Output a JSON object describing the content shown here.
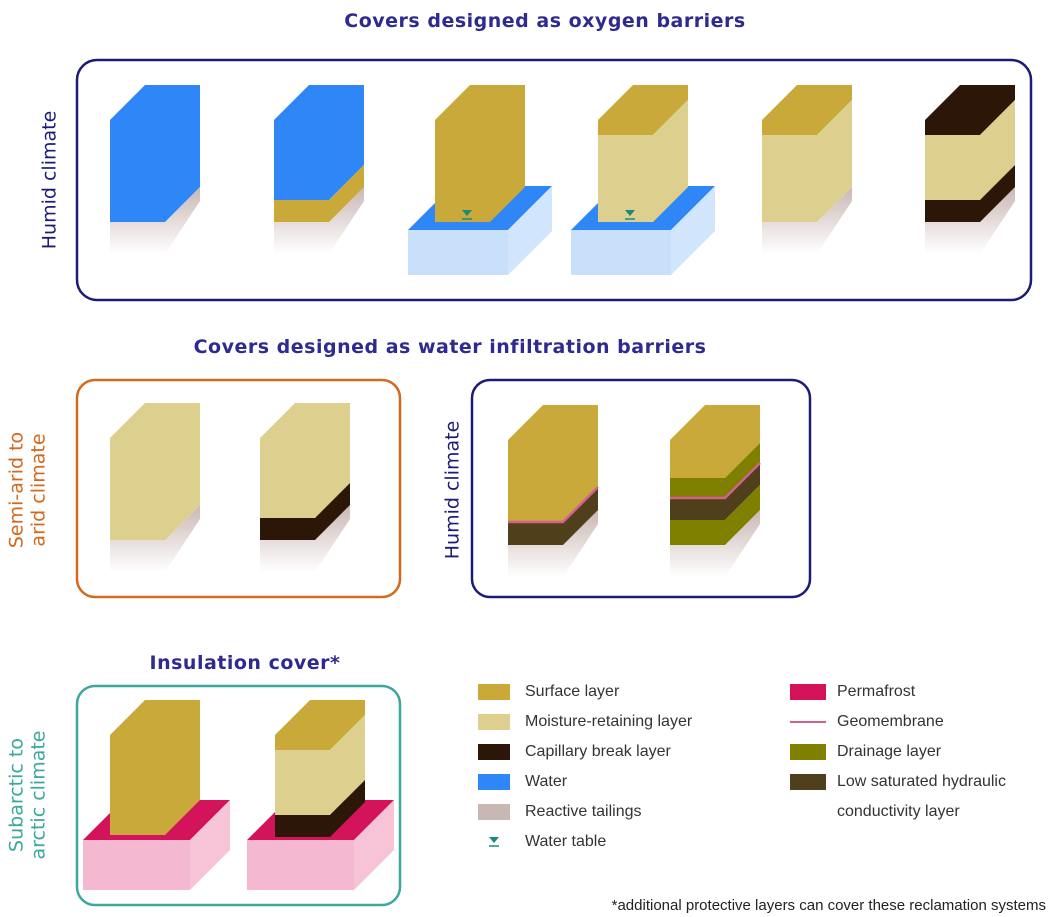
{
  "titles": {
    "oxygen": "Covers designed as oxygen barriers",
    "water_infiltration": "Covers designed as water infiltration barriers",
    "insulation": "Insulation cover*"
  },
  "panels": [
    {
      "label": [
        "Humid climate"
      ]
    },
    {
      "label": [
        "Semi-arid to",
        "arid climate"
      ]
    },
    {
      "label": [
        "Humid climate"
      ]
    },
    {
      "label": [
        "Subarctic to",
        "arctic climate"
      ]
    }
  ],
  "legend": [
    {
      "label": [
        "Surface layer"
      ]
    },
    {
      "label": [
        "Moisture-retaining layer"
      ]
    },
    {
      "label": [
        "Capillary break layer"
      ]
    },
    {
      "label": [
        "Water"
      ]
    },
    {
      "label": [
        "Reactive tailings"
      ]
    },
    {
      "label": [
        "Water table"
      ]
    },
    {
      "label": [
        "Permafrost"
      ]
    },
    {
      "label": [
        "Geomembrane"
      ]
    },
    {
      "label": [
        "Drainage layer"
      ]
    },
    {
      "label": [
        "Low saturated hydraulic",
        "conductivity layer"
      ]
    }
  ],
  "footnote": "*additional protective layers can cover these reclamation systems"
}
